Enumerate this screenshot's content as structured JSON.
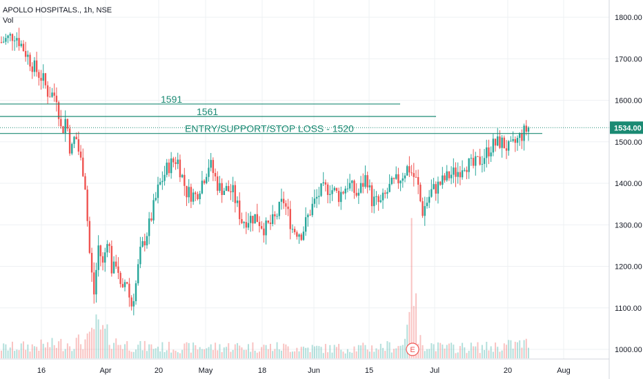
{
  "header": {
    "symbol_line": "APOLLO HOSPITALS., 1h, NSE",
    "indicator_line": "Vol"
  },
  "colors": {
    "up": "#26a69a",
    "down": "#ef5350",
    "level_line": "#1b8a73",
    "badge": "#1b8a73",
    "grid": "#eef0f3",
    "axis_border": "#d1d4dc"
  },
  "chart_data": {
    "type": "candlestick",
    "ylim": [
      990,
      1880
    ],
    "y_ticks": [
      "1800.00",
      "1700.00",
      "1600.00",
      "1500.00",
      "1400.00",
      "1300.00",
      "1200.00",
      "1100.00",
      "1000.00"
    ],
    "y_tick_values": [
      1800,
      1700,
      1600,
      1500,
      1400,
      1300,
      1200,
      1100,
      1000
    ],
    "x_ticks": [
      "16",
      "Apr",
      "20",
      "May",
      "18",
      "Jun",
      "15",
      "Jul",
      "20",
      "Aug"
    ],
    "current_price": "1534.00",
    "current_price_value": 1534,
    "horizontal_levels": [
      {
        "value": 1591,
        "label": "1591"
      },
      {
        "value": 1561,
        "label": "1561"
      },
      {
        "value": 1520,
        "label": "ENTRY/SUPPORT/STOP LOSS - 1520"
      }
    ],
    "event_marker": "E",
    "price_path": [
      [
        0,
        1740
      ],
      [
        3,
        1760
      ],
      [
        5,
        1720
      ],
      [
        7,
        1680
      ],
      [
        9,
        1650
      ],
      [
        10,
        1620
      ],
      [
        12,
        1610
      ],
      [
        13,
        1520
      ],
      [
        14,
        1560
      ],
      [
        15,
        1470
      ],
      [
        16,
        1520
      ],
      [
        17,
        1460
      ],
      [
        18,
        1420
      ],
      [
        19,
        1240
      ],
      [
        20,
        1130
      ],
      [
        21,
        1250
      ],
      [
        22,
        1200
      ],
      [
        23,
        1280
      ],
      [
        24,
        1180
      ],
      [
        25,
        1220
      ],
      [
        26,
        1120
      ],
      [
        27,
        1180
      ],
      [
        28,
        1100
      ],
      [
        29,
        1150
      ],
      [
        30,
        1230
      ],
      [
        32,
        1300
      ],
      [
        34,
        1390
      ],
      [
        36,
        1440
      ],
      [
        38,
        1460
      ],
      [
        40,
        1380
      ],
      [
        42,
        1370
      ],
      [
        44,
        1420
      ],
      [
        45,
        1450
      ],
      [
        47,
        1390
      ],
      [
        50,
        1380
      ],
      [
        52,
        1310
      ],
      [
        55,
        1320
      ],
      [
        57,
        1290
      ],
      [
        59,
        1310
      ],
      [
        61,
        1360
      ],
      [
        63,
        1290
      ],
      [
        65,
        1280
      ],
      [
        67,
        1340
      ],
      [
        69,
        1380
      ],
      [
        71,
        1390
      ],
      [
        73,
        1370
      ],
      [
        75,
        1400
      ],
      [
        77,
        1370
      ],
      [
        79,
        1420
      ],
      [
        80,
        1360
      ],
      [
        82,
        1350
      ],
      [
        84,
        1390
      ],
      [
        86,
        1410
      ],
      [
        88,
        1440
      ],
      [
        90,
        1400
      ],
      [
        91,
        1330
      ],
      [
        93,
        1380
      ],
      [
        95,
        1400
      ],
      [
        97,
        1420
      ],
      [
        99,
        1430
      ],
      [
        100,
        1450
      ],
      [
        102,
        1440
      ],
      [
        104,
        1460
      ],
      [
        106,
        1490
      ],
      [
        108,
        1500
      ],
      [
        110,
        1480
      ],
      [
        112,
        1510
      ],
      [
        114,
        1534
      ]
    ],
    "volume_path": [
      [
        0,
        18
      ],
      [
        10,
        22
      ],
      [
        19,
        30
      ],
      [
        20,
        55
      ],
      [
        25,
        26
      ],
      [
        30,
        20
      ],
      [
        40,
        18
      ],
      [
        50,
        20
      ],
      [
        60,
        19
      ],
      [
        70,
        17
      ],
      [
        80,
        18
      ],
      [
        87,
        22
      ],
      [
        89,
        180
      ],
      [
        90,
        30
      ],
      [
        95,
        18
      ],
      [
        105,
        19
      ],
      [
        114,
        25
      ]
    ]
  }
}
